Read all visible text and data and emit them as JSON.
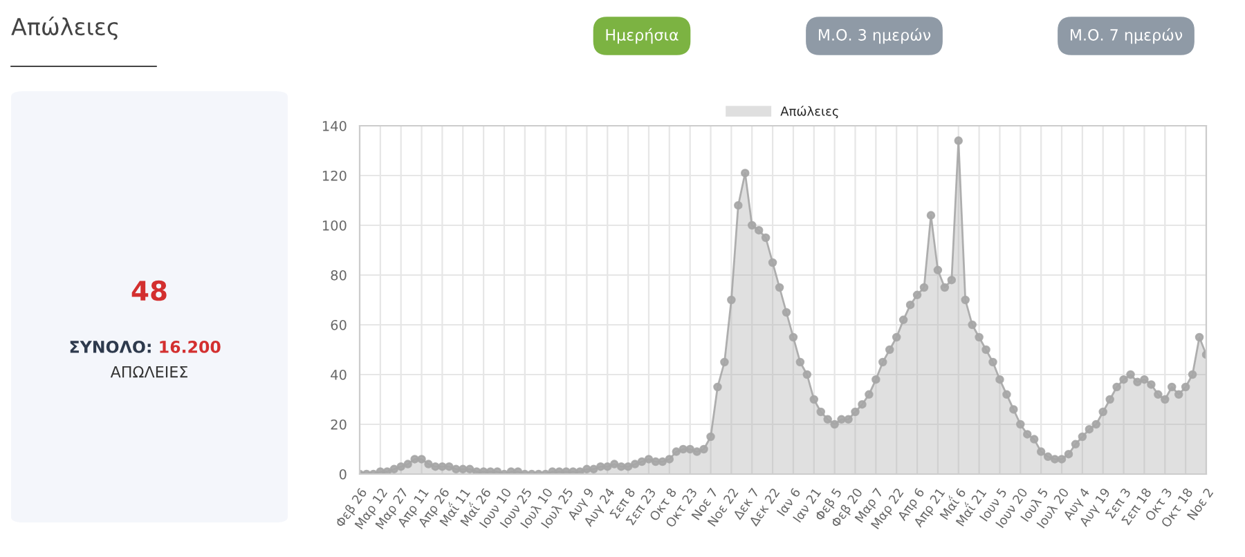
{
  "chart_data": {
    "type": "area",
    "title": "Απώλειες",
    "annotations": [
      "Ημερήσια",
      "Μ.Ο. 3 ημερών",
      "Μ.Ο. 7 ημερών",
      "48",
      "ΣΥΝΟΛΟ:",
      "16.200",
      "ΑΠΩΛΕΙΕΣ"
    ],
    "categories": [
      "Φεβ 26",
      null,
      null,
      "Μαρ 12",
      null,
      null,
      "Μαρ 27",
      null,
      null,
      "Απρ 11",
      null,
      null,
      "Απρ 26",
      null,
      null,
      "Μαΐ 11",
      null,
      null,
      "Μαΐ 26",
      null,
      null,
      "Ιουν 10",
      null,
      null,
      "Ιουν 25",
      null,
      null,
      "Ιουλ 10",
      null,
      null,
      "Ιουλ 25",
      null,
      null,
      "Αυγ 9",
      null,
      null,
      "Αυγ 24",
      null,
      null,
      "Σεπ 8",
      null,
      null,
      "Σεπ 23",
      null,
      null,
      "Οκτ 8",
      null,
      null,
      "Οκτ 23",
      null,
      null,
      "Νοε 7",
      null,
      null,
      "Νοε 22",
      null,
      null,
      "Δεκ 7",
      null,
      null,
      "Δεκ 22",
      null,
      null,
      "Ιαν 6",
      null,
      null,
      "Ιαν 21",
      null,
      null,
      "Φεβ 5",
      null,
      null,
      "Φεβ 20",
      null,
      null,
      "Μαρ 7",
      null,
      null,
      "Μαρ 22",
      null,
      null,
      "Απρ 6",
      null,
      null,
      "Απρ 21",
      null,
      null,
      "Μαΐ 6",
      null,
      null,
      "Μαΐ 21",
      null,
      null,
      "Ιουν 5",
      null,
      null,
      "Ιουν 20",
      null,
      null,
      "Ιουλ 5",
      null,
      null,
      "Ιουλ 20",
      null,
      null,
      "Αυγ 4",
      null,
      null,
      "Αυγ 19",
      null,
      null,
      "Σεπ 3",
      null,
      null,
      "Σεπ 18",
      null,
      null,
      "Οκτ 3",
      null,
      null,
      "Οκτ 18",
      null,
      null,
      "Νοε 2"
    ],
    "series": [
      {
        "name": "Απώλειες",
        "color": "#a6a6a6",
        "values": [
          0,
          0,
          0,
          1,
          1,
          2,
          3,
          4,
          6,
          6,
          4,
          3,
          3,
          3,
          2,
          2,
          2,
          1,
          1,
          1,
          1,
          0,
          1,
          1,
          0,
          0,
          0,
          0,
          1,
          1,
          1,
          1,
          1,
          2,
          2,
          3,
          3,
          4,
          3,
          3,
          4,
          5,
          6,
          5,
          5,
          6,
          9,
          10,
          10,
          9,
          10,
          15,
          35,
          45,
          70,
          108,
          121,
          100,
          98,
          95,
          85,
          75,
          65,
          55,
          45,
          40,
          30,
          25,
          22,
          20,
          22,
          22,
          25,
          28,
          32,
          38,
          45,
          50,
          55,
          62,
          68,
          72,
          75,
          104,
          82,
          75,
          78,
          134,
          70,
          60,
          55,
          50,
          45,
          38,
          32,
          26,
          20,
          16,
          14,
          9,
          7,
          6,
          6,
          8,
          12,
          15,
          18,
          20,
          25,
          30,
          35,
          38,
          40,
          37,
          38,
          36,
          32,
          30,
          35,
          32,
          35,
          40,
          55,
          48
        ]
      }
    ],
    "ylim": [
      0,
      140
    ],
    "yticks": [
      0,
      20,
      40,
      60,
      80,
      100,
      120,
      140
    ],
    "grid": true,
    "legend": "top",
    "marker": "circle"
  }
}
